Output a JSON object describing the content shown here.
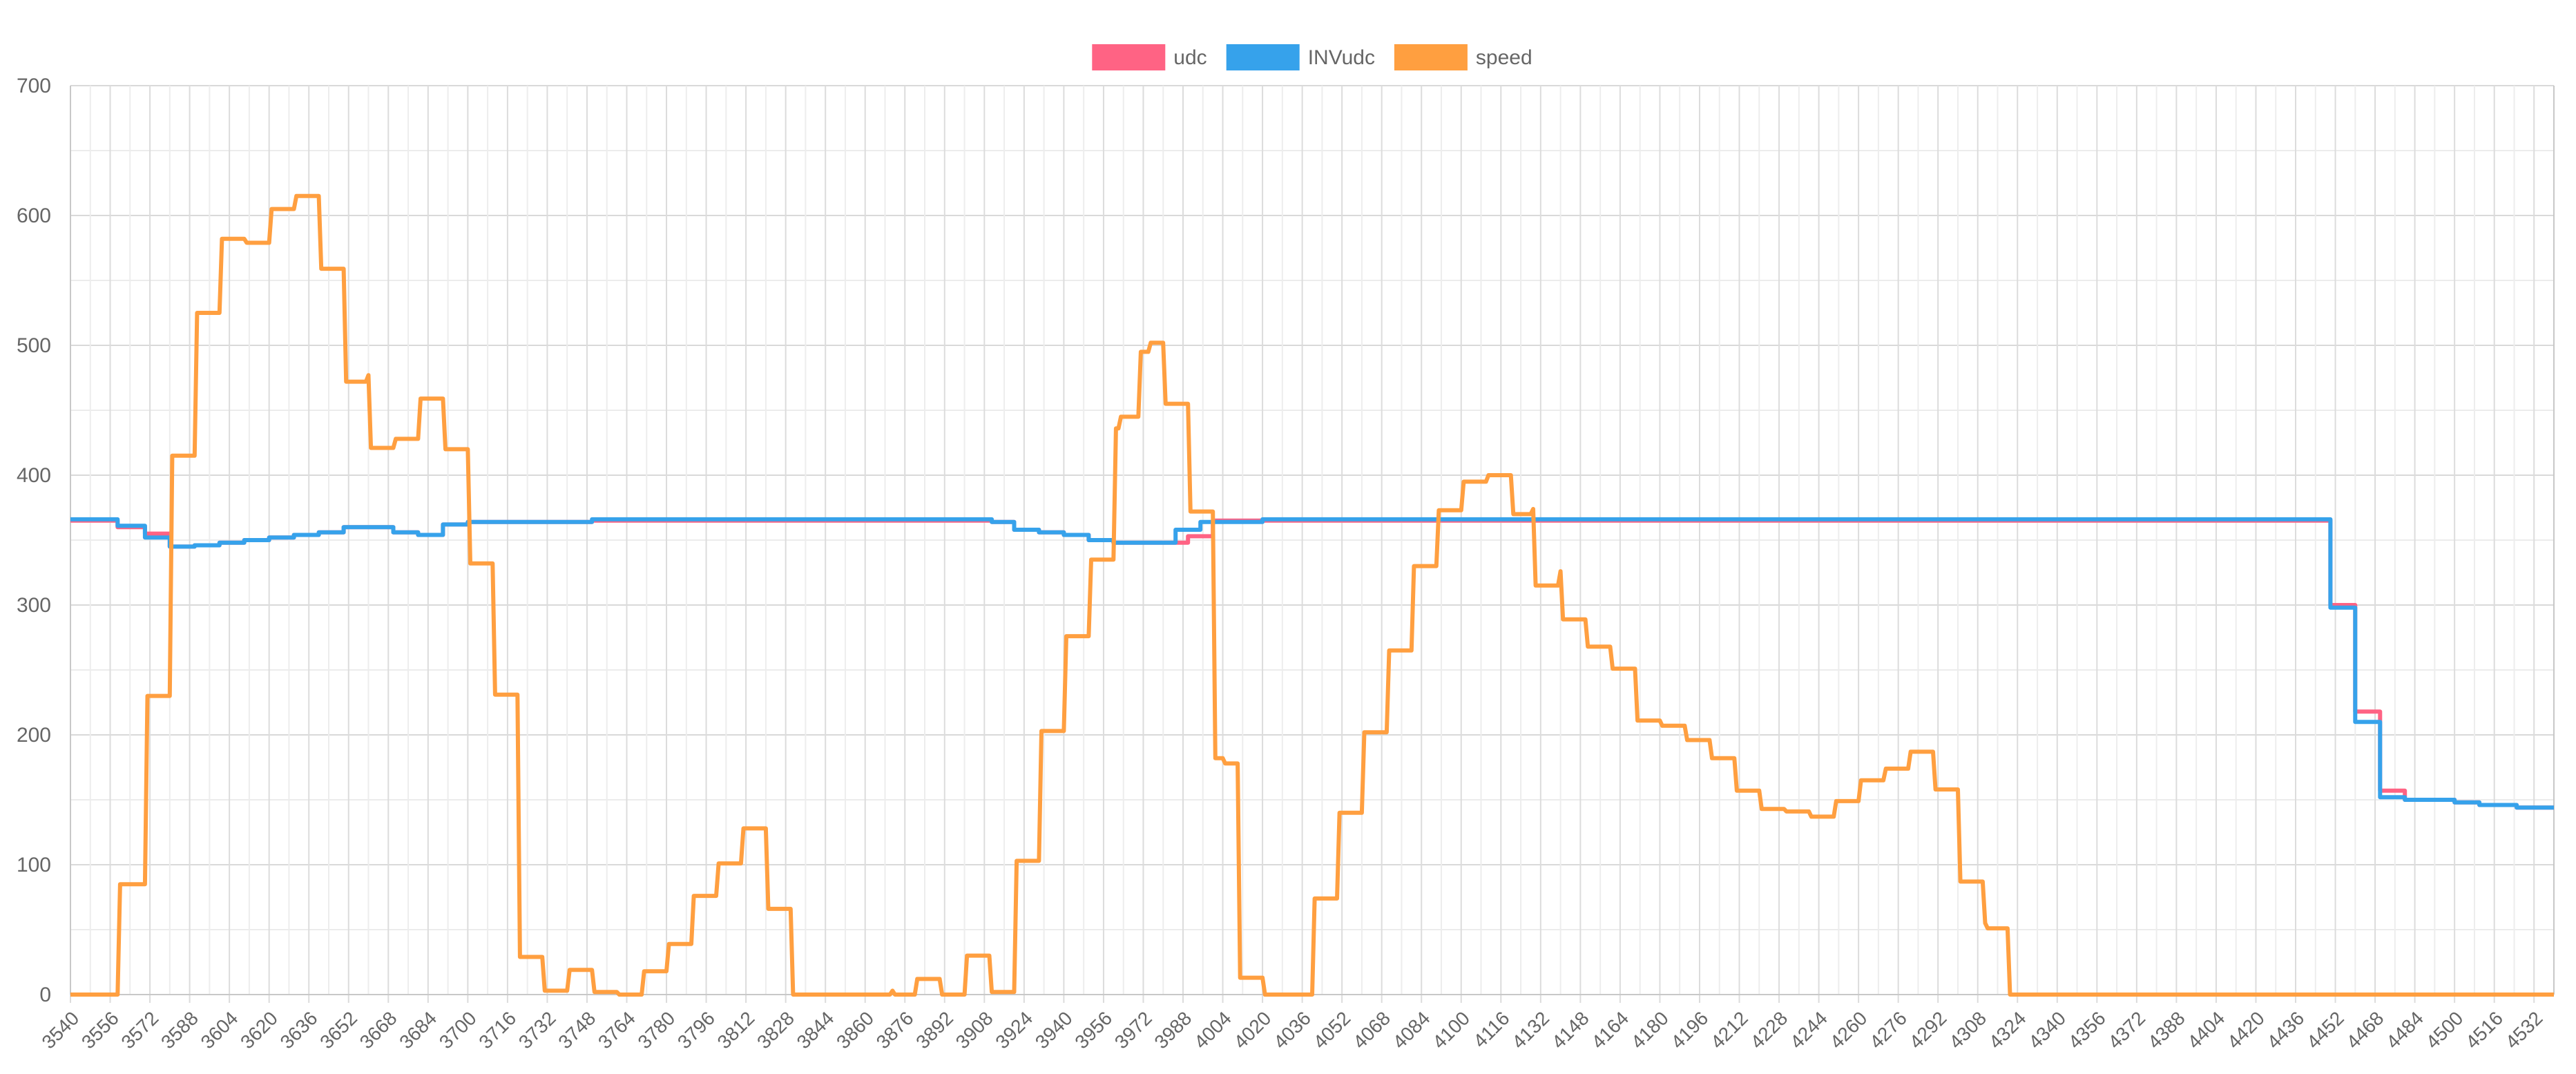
{
  "chart_data": {
    "type": "line",
    "title": "",
    "xlabel": "",
    "ylabel": "",
    "legend_position": "top-center",
    "grid": true,
    "x_range": [
      3540,
      4540
    ],
    "x_tick_labels": [
      "3540",
      "3556",
      "3572",
      "3588",
      "3604",
      "3620",
      "3636",
      "3652",
      "3668",
      "3684",
      "3700",
      "3716",
      "3732",
      "3748",
      "3764",
      "3780",
      "3796",
      "3812",
      "3828",
      "3844",
      "3860",
      "3876",
      "3892",
      "3908",
      "3924",
      "3940",
      "3956",
      "3972",
      "3988",
      "4004",
      "4020",
      "4036",
      "4052",
      "4068",
      "4084",
      "4100",
      "4116",
      "4132",
      "4148",
      "4164",
      "4180",
      "4196",
      "4212",
      "4228",
      "4244",
      "4260",
      "4276",
      "4292",
      "4308",
      "4324",
      "4340",
      "4356",
      "4372",
      "4388",
      "4404",
      "4420",
      "4436",
      "4452",
      "4468",
      "4484",
      "4500",
      "4516",
      "4532"
    ],
    "ylim": [
      0,
      700
    ],
    "y_tick_labels": [
      "0",
      "100",
      "200",
      "300",
      "400",
      "500",
      "600",
      "700"
    ],
    "series": [
      {
        "name": "udc",
        "color": "#ff6384",
        "points": [
          [
            3540,
            365
          ],
          [
            3559,
            365
          ],
          [
            3559,
            360
          ],
          [
            3570,
            360
          ],
          [
            3570,
            355
          ],
          [
            3580,
            355
          ],
          [
            3580,
            345
          ],
          [
            3590,
            345
          ],
          [
            3590,
            346
          ],
          [
            3600,
            346
          ],
          [
            3600,
            348
          ],
          [
            3610,
            348
          ],
          [
            3610,
            350
          ],
          [
            3620,
            350
          ],
          [
            3620,
            352
          ],
          [
            3630,
            352
          ],
          [
            3630,
            354
          ],
          [
            3640,
            354
          ],
          [
            3640,
            356
          ],
          [
            3650,
            356
          ],
          [
            3650,
            360
          ],
          [
            3670,
            360
          ],
          [
            3670,
            356
          ],
          [
            3680,
            356
          ],
          [
            3680,
            354
          ],
          [
            3690,
            354
          ],
          [
            3690,
            362
          ],
          [
            3700,
            362
          ],
          [
            3700,
            364
          ],
          [
            3750,
            364
          ],
          [
            3750,
            365
          ],
          [
            3911,
            365
          ],
          [
            3911,
            364
          ],
          [
            3920,
            364
          ],
          [
            3920,
            358
          ],
          [
            3930,
            358
          ],
          [
            3930,
            356
          ],
          [
            3940,
            356
          ],
          [
            3940,
            354
          ],
          [
            3950,
            354
          ],
          [
            3950,
            350
          ],
          [
            3960,
            350
          ],
          [
            3960,
            348
          ],
          [
            3990,
            348
          ],
          [
            3990,
            353
          ],
          [
            4000,
            353
          ],
          [
            4000,
            365
          ],
          [
            4450,
            365
          ],
          [
            4450,
            300
          ],
          [
            4460,
            300
          ],
          [
            4460,
            218
          ],
          [
            4470,
            218
          ],
          [
            4470,
            157
          ],
          [
            4480,
            157
          ],
          [
            4480,
            150
          ],
          [
            4500,
            150
          ],
          [
            4500,
            148
          ],
          [
            4510,
            148
          ],
          [
            4510,
            146
          ],
          [
            4525,
            146
          ],
          [
            4525,
            144
          ],
          [
            4540,
            144
          ]
        ]
      },
      {
        "name": "INVudc",
        "color": "#36a2eb",
        "points": [
          [
            3540,
            366
          ],
          [
            3559,
            366
          ],
          [
            3559,
            361
          ],
          [
            3570,
            361
          ],
          [
            3570,
            352
          ],
          [
            3580,
            352
          ],
          [
            3580,
            345
          ],
          [
            3590,
            345
          ],
          [
            3590,
            346
          ],
          [
            3600,
            346
          ],
          [
            3600,
            348
          ],
          [
            3610,
            348
          ],
          [
            3610,
            350
          ],
          [
            3620,
            350
          ],
          [
            3620,
            352
          ],
          [
            3630,
            352
          ],
          [
            3630,
            354
          ],
          [
            3640,
            354
          ],
          [
            3640,
            356
          ],
          [
            3650,
            356
          ],
          [
            3650,
            360
          ],
          [
            3670,
            360
          ],
          [
            3670,
            356
          ],
          [
            3680,
            356
          ],
          [
            3680,
            354
          ],
          [
            3690,
            354
          ],
          [
            3690,
            362
          ],
          [
            3700,
            362
          ],
          [
            3700,
            364
          ],
          [
            3750,
            364
          ],
          [
            3750,
            366
          ],
          [
            3911,
            366
          ],
          [
            3911,
            364
          ],
          [
            3920,
            364
          ],
          [
            3920,
            358
          ],
          [
            3930,
            358
          ],
          [
            3930,
            356
          ],
          [
            3940,
            356
          ],
          [
            3940,
            354
          ],
          [
            3950,
            354
          ],
          [
            3950,
            350
          ],
          [
            3960,
            350
          ],
          [
            3960,
            348
          ],
          [
            3985,
            348
          ],
          [
            3985,
            358
          ],
          [
            3995,
            358
          ],
          [
            3995,
            364
          ],
          [
            4020,
            364
          ],
          [
            4020,
            366
          ],
          [
            4450,
            366
          ],
          [
            4450,
            298
          ],
          [
            4460,
            298
          ],
          [
            4460,
            210
          ],
          [
            4470,
            210
          ],
          [
            4470,
            152
          ],
          [
            4480,
            152
          ],
          [
            4480,
            150
          ],
          [
            4500,
            150
          ],
          [
            4500,
            148
          ],
          [
            4510,
            148
          ],
          [
            4510,
            146
          ],
          [
            4525,
            146
          ],
          [
            4525,
            144
          ],
          [
            4540,
            144
          ]
        ]
      },
      {
        "name": "speed",
        "color": "#ff9f40",
        "points": [
          [
            3540,
            0
          ],
          [
            3559,
            0
          ],
          [
            3560,
            85
          ],
          [
            3570,
            85
          ],
          [
            3571,
            230
          ],
          [
            3580,
            230
          ],
          [
            3581,
            415
          ],
          [
            3590,
            415
          ],
          [
            3591,
            525
          ],
          [
            3600,
            525
          ],
          [
            3601,
            582
          ],
          [
            3610,
            582
          ],
          [
            3611,
            579
          ],
          [
            3620,
            579
          ],
          [
            3621,
            605
          ],
          [
            3630,
            605
          ],
          [
            3631,
            615
          ],
          [
            3640,
            615
          ],
          [
            3641,
            559
          ],
          [
            3650,
            559
          ],
          [
            3651,
            472
          ],
          [
            3659,
            472
          ],
          [
            3660,
            477
          ],
          [
            3661,
            421
          ],
          [
            3670,
            421
          ],
          [
            3671,
            428
          ],
          [
            3680,
            428
          ],
          [
            3681,
            459
          ],
          [
            3690,
            459
          ],
          [
            3691,
            420
          ],
          [
            3700,
            420
          ],
          [
            3701,
            332
          ],
          [
            3710,
            332
          ],
          [
            3711,
            231
          ],
          [
            3720,
            231
          ],
          [
            3721,
            29
          ],
          [
            3730,
            29
          ],
          [
            3731,
            3
          ],
          [
            3740,
            3
          ],
          [
            3741,
            19
          ],
          [
            3750,
            19
          ],
          [
            3751,
            2
          ],
          [
            3760,
            2
          ],
          [
            3761,
            0
          ],
          [
            3770,
            0
          ],
          [
            3771,
            18
          ],
          [
            3780,
            18
          ],
          [
            3781,
            39
          ],
          [
            3790,
            39
          ],
          [
            3791,
            76
          ],
          [
            3800,
            76
          ],
          [
            3801,
            101
          ],
          [
            3810,
            101
          ],
          [
            3811,
            128
          ],
          [
            3820,
            128
          ],
          [
            3821,
            66
          ],
          [
            3830,
            66
          ],
          [
            3831,
            0
          ],
          [
            3870,
            0
          ],
          [
            3871,
            3
          ],
          [
            3872,
            0
          ],
          [
            3880,
            0
          ],
          [
            3881,
            12
          ],
          [
            3890,
            12
          ],
          [
            3891,
            0
          ],
          [
            3900,
            0
          ],
          [
            3901,
            30
          ],
          [
            3910,
            30
          ],
          [
            3911,
            2
          ],
          [
            3920,
            2
          ],
          [
            3921,
            103
          ],
          [
            3930,
            103
          ],
          [
            3931,
            203
          ],
          [
            3940,
            203
          ],
          [
            3941,
            276
          ],
          [
            3950,
            276
          ],
          [
            3951,
            335
          ],
          [
            3960,
            335
          ],
          [
            3961,
            436
          ],
          [
            3962,
            436
          ],
          [
            3963,
            445
          ],
          [
            3970,
            445
          ],
          [
            3971,
            495
          ],
          [
            3974,
            495
          ],
          [
            3975,
            502
          ],
          [
            3980,
            502
          ],
          [
            3981,
            455
          ],
          [
            3990,
            455
          ],
          [
            3991,
            372
          ],
          [
            4000,
            372
          ],
          [
            4001,
            182
          ],
          [
            4004,
            182
          ],
          [
            4005,
            178
          ],
          [
            4010,
            178
          ],
          [
            4011,
            13
          ],
          [
            4020,
            13
          ],
          [
            4021,
            0
          ],
          [
            4040,
            0
          ],
          [
            4041,
            74
          ],
          [
            4050,
            74
          ],
          [
            4051,
            140
          ],
          [
            4060,
            140
          ],
          [
            4061,
            202
          ],
          [
            4070,
            202
          ],
          [
            4071,
            265
          ],
          [
            4080,
            265
          ],
          [
            4081,
            330
          ],
          [
            4090,
            330
          ],
          [
            4091,
            373
          ],
          [
            4100,
            373
          ],
          [
            4101,
            395
          ],
          [
            4110,
            395
          ],
          [
            4111,
            400
          ],
          [
            4120,
            400
          ],
          [
            4121,
            370
          ],
          [
            4128,
            370
          ],
          [
            4129,
            374
          ],
          [
            4130,
            315
          ],
          [
            4139,
            315
          ],
          [
            4140,
            326
          ],
          [
            4141,
            289
          ],
          [
            4150,
            289
          ],
          [
            4151,
            268
          ],
          [
            4160,
            268
          ],
          [
            4161,
            251
          ],
          [
            4170,
            251
          ],
          [
            4171,
            211
          ],
          [
            4180,
            211
          ],
          [
            4181,
            207
          ],
          [
            4190,
            207
          ],
          [
            4191,
            196
          ],
          [
            4200,
            196
          ],
          [
            4201,
            182
          ],
          [
            4210,
            182
          ],
          [
            4211,
            157
          ],
          [
            4220,
            157
          ],
          [
            4221,
            143
          ],
          [
            4230,
            143
          ],
          [
            4231,
            141
          ],
          [
            4240,
            141
          ],
          [
            4241,
            137
          ],
          [
            4250,
            137
          ],
          [
            4251,
            149
          ],
          [
            4260,
            149
          ],
          [
            4261,
            165
          ],
          [
            4270,
            165
          ],
          [
            4271,
            174
          ],
          [
            4280,
            174
          ],
          [
            4281,
            187
          ],
          [
            4290,
            187
          ],
          [
            4291,
            158
          ],
          [
            4300,
            158
          ],
          [
            4301,
            87
          ],
          [
            4310,
            87
          ],
          [
            4311,
            55
          ],
          [
            4312,
            51
          ],
          [
            4320,
            51
          ],
          [
            4321,
            0
          ],
          [
            4540,
            0
          ]
        ]
      }
    ]
  }
}
